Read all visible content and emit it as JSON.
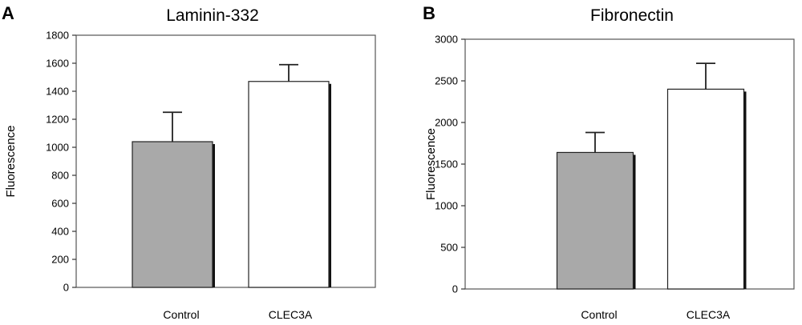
{
  "chart_data": [
    {
      "panel": "A",
      "type": "bar",
      "title": "Laminin-332",
      "xlabel": "",
      "ylabel": "Fluorescence",
      "categories": [
        "Control",
        "CLEC3A"
      ],
      "values": [
        1040,
        1470
      ],
      "errors": [
        210,
        120
      ],
      "ylim": [
        0,
        1800
      ],
      "yticks": [
        0,
        200,
        400,
        600,
        800,
        1000,
        1200,
        1400,
        1600,
        1800
      ],
      "bar_colors": [
        "#a9a9a9",
        "#ffffff"
      ],
      "grid": false,
      "legend": "none"
    },
    {
      "panel": "B",
      "type": "bar",
      "title": "Fibronectin",
      "xlabel": "",
      "ylabel": "Fluorescence",
      "categories": [
        "Control",
        "CLEC3A"
      ],
      "values": [
        1640,
        2400
      ],
      "errors": [
        240,
        310
      ],
      "ylim": [
        0,
        3000
      ],
      "yticks": [
        0,
        500,
        1000,
        1500,
        2000,
        2500,
        3000
      ],
      "bar_colors": [
        "#a9a9a9",
        "#ffffff"
      ],
      "grid": false,
      "legend": "none"
    }
  ]
}
